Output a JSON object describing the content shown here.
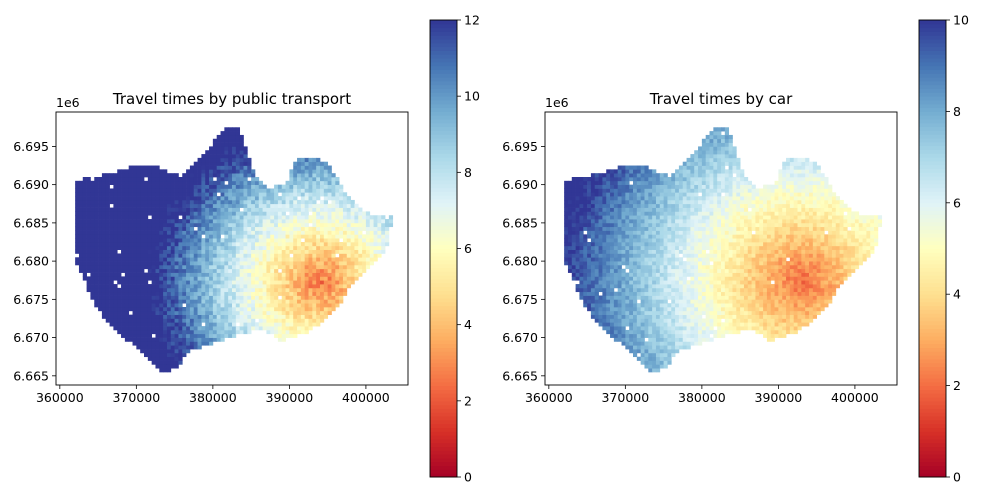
{
  "chart_data": [
    {
      "type": "heatmap",
      "title": "Travel times by public transport",
      "axis_offset_label": "1e6",
      "x_ticks": [
        360000,
        370000,
        380000,
        390000,
        400000
      ],
      "y_ticks": [
        6.665,
        6.67,
        6.675,
        6.68,
        6.685,
        6.69,
        6.695
      ],
      "xlim": [
        359500,
        405500
      ],
      "ylim": [
        6.6638,
        6.6995
      ],
      "colorbar": {
        "colormap": "RdYlBu",
        "range": [
          0,
          12
        ],
        "ticks": [
          0,
          2,
          4,
          6,
          8,
          10,
          12
        ]
      },
      "hotspot": {
        "x": 394000,
        "y": 6.6772,
        "min_value": 2.5
      },
      "grid": false
    },
    {
      "type": "heatmap",
      "title": "Travel times by car",
      "axis_offset_label": "1e6",
      "x_ticks": [
        360000,
        370000,
        380000,
        390000,
        400000
      ],
      "y_ticks": [
        6.665,
        6.67,
        6.675,
        6.68,
        6.685,
        6.69,
        6.695
      ],
      "xlim": [
        359500,
        405500
      ],
      "ylim": [
        6.6638,
        6.6995
      ],
      "colorbar": {
        "colormap": "RdYlBu",
        "range": [
          0,
          10
        ],
        "ticks": [
          0,
          2,
          4,
          6,
          8,
          10
        ]
      },
      "hotspot": {
        "x": 393000,
        "y": 6.6775,
        "min_value": 2.0
      },
      "grid": false
    }
  ]
}
